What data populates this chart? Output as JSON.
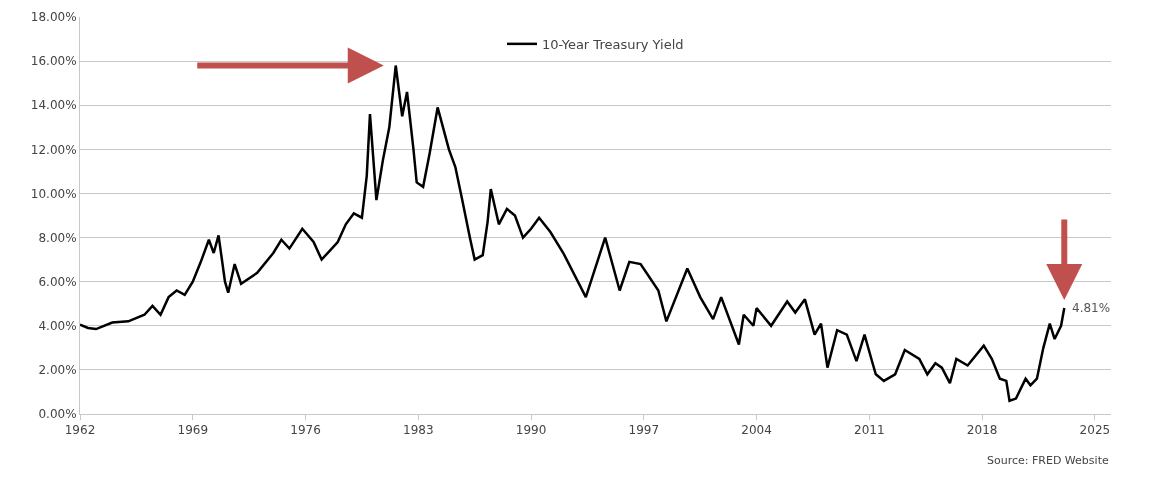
{
  "chart_data": {
    "type": "line",
    "x": [
      1962,
      1962.5,
      1963,
      1964,
      1965,
      1966,
      1966.5,
      1967,
      1967.5,
      1968,
      1968.5,
      1969,
      1969.5,
      1970,
      1970.3,
      1970.6,
      1971,
      1971.2,
      1971.6,
      1972,
      1973,
      1974,
      1974.5,
      1975,
      1975.8,
      1976.5,
      1977,
      1977.5,
      1978,
      1978.5,
      1979,
      1979.5,
      1979.8,
      1980,
      1980.4,
      1980.8,
      1981.2,
      1981.6,
      1982,
      1982.3,
      1982.7,
      1982.9,
      1983.3,
      1983.7,
      1984.2,
      1984.9,
      1985.3,
      1985.7,
      1986.2,
      1986.5,
      1987,
      1987.3,
      1987.5,
      1988,
      1988.5,
      1989,
      1989.5,
      1990,
      1990.5,
      1991.2,
      1992,
      1993.4,
      1994.6,
      1995.5,
      1996.1,
      1996.8,
      1997.9,
      1998.4,
      1999.7,
      2000.5,
      2001.3,
      2001.8,
      2002.9,
      2003.2,
      2003.8,
      2004,
      2004.9,
      2005.9,
      2006.4,
      2007,
      2007.6,
      2008,
      2008.4,
      2009,
      2009.6,
      2010.2,
      2010.7,
      2011.2,
      2011.4,
      2011.9,
      2012.6,
      2013.2,
      2014.1,
      2014.6,
      2015.1,
      2015.5,
      2016,
      2016.4,
      2017.1,
      2018.1,
      2018.6,
      2019.1,
      2019.5,
      2019.7,
      2020.1,
      2020.7,
      2021,
      2021.4,
      2021.8,
      2022.2,
      2022.5,
      2022.9,
      2023.1
    ],
    "series": [
      {
        "name": "10-Year Treasury Yield",
        "color": "#000000",
        "values": [
          4.05,
          3.9,
          3.85,
          4.15,
          4.2,
          4.5,
          4.9,
          4.5,
          5.3,
          5.6,
          5.4,
          6.0,
          6.9,
          7.9,
          7.3,
          8.1,
          6.0,
          5.5,
          6.8,
          5.9,
          6.4,
          7.3,
          7.9,
          7.5,
          8.4,
          7.8,
          7.0,
          7.4,
          7.8,
          8.6,
          9.1,
          8.9,
          10.8,
          13.6,
          9.7,
          11.5,
          13.0,
          15.8,
          13.5,
          14.6,
          12.0,
          10.5,
          10.3,
          11.8,
          13.9,
          12.0,
          11.2,
          9.8,
          8.0,
          7.0,
          7.2,
          8.7,
          10.2,
          8.6,
          9.3,
          9.0,
          8.0,
          8.4,
          8.9,
          8.25,
          7.3,
          5.3,
          8.0,
          5.6,
          6.9,
          6.8,
          5.6,
          4.2,
          6.6,
          5.3,
          4.3,
          5.3,
          3.15,
          4.5,
          4.0,
          4.8,
          4.0,
          5.1,
          4.6,
          5.2,
          3.6,
          4.1,
          2.1,
          3.8,
          3.6,
          2.4,
          3.6,
          2.3,
          1.8,
          1.5,
          1.8,
          2.9,
          2.5,
          1.8,
          2.3,
          2.1,
          1.4,
          2.5,
          2.2,
          3.1,
          2.5,
          1.6,
          1.5,
          0.6,
          0.7,
          1.6,
          1.3,
          1.6,
          3.0,
          4.1,
          3.4,
          4.0,
          4.81
        ]
      }
    ],
    "xlim": [
      1962,
      2026
    ],
    "xticks": [
      1962,
      1969,
      1976,
      1983,
      1990,
      1997,
      2004,
      2011,
      2018,
      2025
    ],
    "ylim": [
      0,
      18
    ],
    "yticks": [
      {
        "value": 0,
        "label": "0.00%"
      },
      {
        "value": 2,
        "label": "2.00%"
      },
      {
        "value": 4,
        "label": "4.00%"
      },
      {
        "value": 6,
        "label": "6.00%"
      },
      {
        "value": 8,
        "label": "8.00%"
      },
      {
        "value": 10,
        "label": "10.00%"
      },
      {
        "value": 12,
        "label": "12.00%"
      },
      {
        "value": 14,
        "label": "14.00%"
      },
      {
        "value": 16,
        "label": "16.00%"
      },
      {
        "value": 18,
        "label": "18.00%"
      }
    ],
    "grid": "y",
    "legend": "top",
    "annotations": [
      {
        "text": "4.81%",
        "x": 2023.1,
        "y": 4.81
      },
      "Source: FRED Website"
    ]
  }
}
